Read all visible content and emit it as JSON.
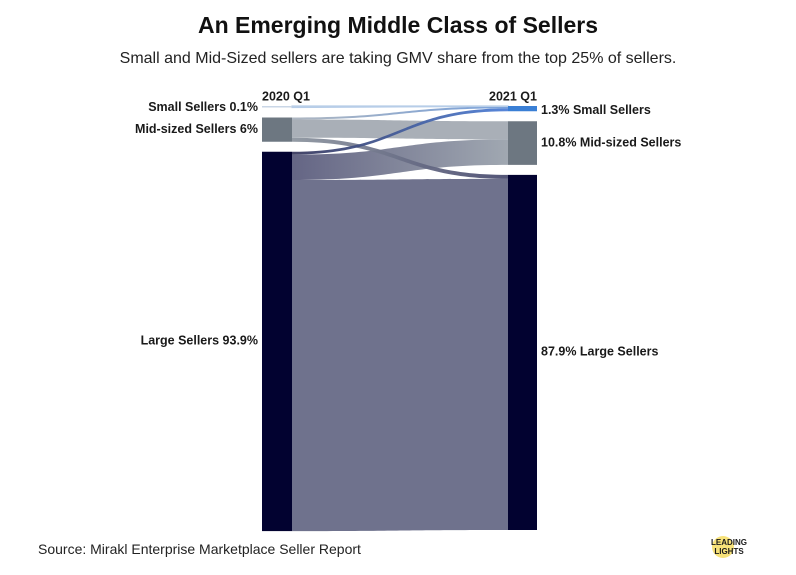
{
  "header": {
    "title": "An Emerging Middle Class of Sellers",
    "subtitle": "Small and Mid-Sized sellers are taking GMV share from the top 25% of sellers."
  },
  "footer": {
    "source": "Source: Mirakl Enterprise Marketplace Seller Report",
    "logo_line1": "LEADING",
    "logo_line2": "LIGHTS"
  },
  "chart_data": {
    "type": "sankey",
    "title": "An Emerging Middle Class of Sellers",
    "columns": [
      "2020 Q1",
      "2021 Q1"
    ],
    "left_nodes": [
      {
        "id": "small",
        "label": "Small Sellers 0.1%",
        "value": 0.1,
        "color": "#c9d6e6"
      },
      {
        "id": "mid",
        "label": "Mid-sized Sellers 6%",
        "value": 6,
        "color": "#6d7781"
      },
      {
        "id": "large",
        "label": "Large Sellers 93.9%",
        "value": 93.9,
        "color": "#020230"
      }
    ],
    "right_nodes": [
      {
        "id": "small",
        "label": "1.3% Small Sellers",
        "value": 1.3,
        "color": "#3a7fd5"
      },
      {
        "id": "mid",
        "label": "10.8% Mid-sized Sellers",
        "value": 10.8,
        "color": "#6d7781"
      },
      {
        "id": "large",
        "label": "87.9% Large Sellers",
        "value": 87.9,
        "color": "#020230"
      }
    ],
    "flows": [
      {
        "from": "small",
        "to": "small",
        "value": 0.1
      },
      {
        "from": "mid",
        "to": "small",
        "value": 0.5
      },
      {
        "from": "mid",
        "to": "mid",
        "value": 4.5
      },
      {
        "from": "mid",
        "to": "large",
        "value": 1.0
      },
      {
        "from": "large",
        "to": "small",
        "value": 0.7
      },
      {
        "from": "large",
        "to": "mid",
        "value": 6.3
      },
      {
        "from": "large",
        "to": "large",
        "value": 86.9
      }
    ],
    "flow_colors": {
      "mid": "#a4abb3",
      "small": "#7fa2d3",
      "large": "#676a87"
    }
  }
}
